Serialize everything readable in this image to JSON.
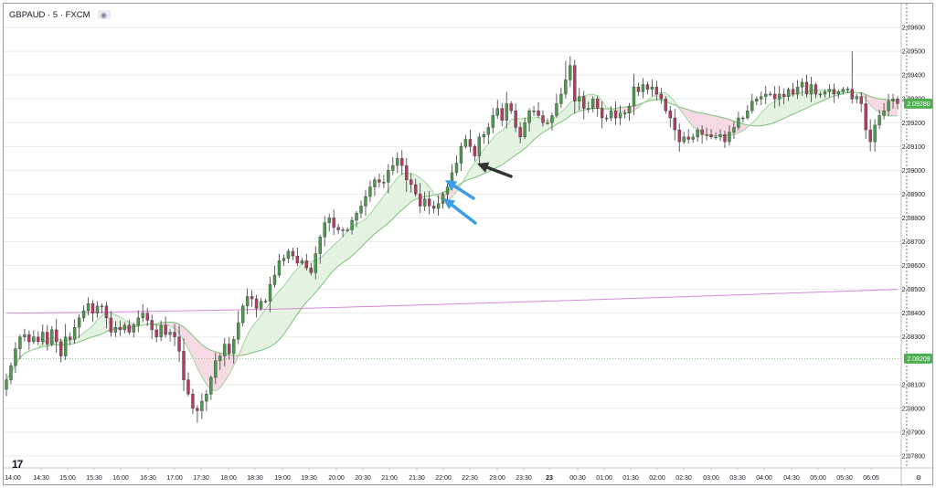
{
  "header": {
    "symbol": "GBPAUD · 5 · FXCM",
    "visibility_icon": "eye-icon"
  },
  "branding": {
    "logo_text": "17",
    "logo_icon": "tradingview-logo-icon"
  },
  "settings_icon": "gear-icon",
  "colors": {
    "up_candle": "#4c9a4c",
    "down_candle": "#b63b61",
    "wick": "#3a3a3a",
    "fast_ma": "#8fcf8f",
    "slow_ma": "#7bc27b",
    "bull_fill": "#e4f3e1",
    "bear_fill": "#f6d9e3",
    "long_ma": "#d888d8",
    "last_price_badge": "#4caf50",
    "level_badge": "#4caf50",
    "level_line": "#7fbf7f",
    "arrow_blue": "#3b9ee6",
    "arrow_black": "#333333"
  },
  "chart_data": {
    "type": "candlestick",
    "title": "GBPAUD · 5 · FXCM",
    "ylim": [
      2.0775,
      2.097
    ],
    "y_ticks": [
      "2.09600",
      "2.09500",
      "2.09400",
      "2.09300",
      "2.09200",
      "2.09100",
      "2.09000",
      "2.08900",
      "2.08800",
      "2.08700",
      "2.08600",
      "2.08500",
      "2.08400",
      "2.08300",
      "2.08100",
      "2.08000",
      "2.07900",
      "2.07800"
    ],
    "x_ticks": [
      "14:00",
      "14:30",
      "15:00",
      "15:30",
      "16:00",
      "16:30",
      "17:00",
      "17:30",
      "18:00",
      "18:30",
      "19:00",
      "19:30",
      "20:00",
      "20:30",
      "21:00",
      "21:30",
      "22:00",
      "22:30",
      "23:00",
      "23:30",
      "23",
      "00:30",
      "01:00",
      "01:30",
      "02:00",
      "02:30",
      "03:00",
      "03:30",
      "04:00",
      "04:30",
      "05:00",
      "05:30",
      "06:05"
    ],
    "last_price_label": "2.09280",
    "level_label": "2.08209",
    "level_value": 2.08209,
    "last_price": 2.0928,
    "crosshair_time_index": 198,
    "close": [
      2.0812,
      2.0818,
      2.0825,
      2.083,
      2.0831,
      2.0828,
      2.083,
      2.0828,
      2.0832,
      2.0827,
      2.0833,
      2.0828,
      2.0822,
      2.083,
      2.0829,
      2.0834,
      2.0838,
      2.0841,
      2.0844,
      2.084,
      2.0843,
      2.0843,
      2.0838,
      2.0832,
      2.0834,
      2.0833,
      2.0835,
      2.0832,
      2.0835,
      2.0838,
      2.084,
      2.0837,
      2.0833,
      2.083,
      2.0835,
      2.0831,
      2.0832,
      2.083,
      2.0824,
      2.0812,
      2.0806,
      2.08,
      2.0799,
      2.0803,
      2.0806,
      2.0813,
      2.082,
      2.0822,
      2.0827,
      2.0823,
      2.0829,
      2.0836,
      2.0843,
      2.0847,
      2.0846,
      2.0842,
      2.0845,
      2.0845,
      2.0852,
      2.0856,
      2.0862,
      2.0863,
      2.0866,
      2.0864,
      2.0861,
      2.0862,
      2.0859,
      2.0857,
      2.0865,
      2.0872,
      2.0878,
      2.088,
      2.0876,
      2.0875,
      2.0875,
      2.0875,
      2.0879,
      2.0882,
      2.0885,
      2.0889,
      2.0893,
      2.0896,
      2.0895,
      2.0895,
      2.09,
      2.0902,
      2.0905,
      2.0902,
      2.0896,
      2.0894,
      2.089,
      2.0885,
      2.0888,
      2.0885,
      2.0884,
      2.0886,
      2.089,
      2.0893,
      2.0899,
      2.0903,
      2.091,
      2.0913,
      2.091,
      2.0906,
      2.0914,
      2.0915,
      2.0918,
      2.0923,
      2.0926,
      2.0921,
      2.0928,
      2.0925,
      2.0918,
      2.0914,
      2.092,
      2.0925,
      2.0925,
      2.0923,
      2.092,
      2.092,
      2.0923,
      2.0928,
      2.0932,
      2.0938,
      2.0944,
      2.0929,
      2.0931,
      2.0926,
      2.0926,
      2.093,
      2.0926,
      2.0922,
      2.0922,
      2.0925,
      2.0922,
      2.0924,
      2.0924,
      2.0927,
      2.0935,
      2.0933,
      2.0936,
      2.0934,
      2.0935,
      2.0932,
      2.093,
      2.0925,
      2.0922,
      2.0917,
      2.0912,
      2.0914,
      2.0913,
      2.0914,
      2.0917,
      2.0915,
      2.0915,
      2.0914,
      2.0914,
      2.0915,
      2.0912,
      2.0916,
      2.0918,
      2.0922,
      2.0922,
      2.0925,
      2.0929,
      2.093,
      2.0931,
      2.0932,
      2.0932,
      2.093,
      2.0932,
      2.0931,
      2.0934,
      2.0932,
      2.0935,
      2.0937,
      2.0932,
      2.0936,
      2.0932,
      2.0932,
      2.0933,
      2.0934,
      2.0932,
      2.0933,
      2.0934,
      2.0934,
      2.093,
      2.0931,
      2.0928,
      2.0917,
      2.0912,
      2.0919,
      2.0923,
      2.0925,
      2.0929,
      2.093,
      2.0928
    ]
  }
}
